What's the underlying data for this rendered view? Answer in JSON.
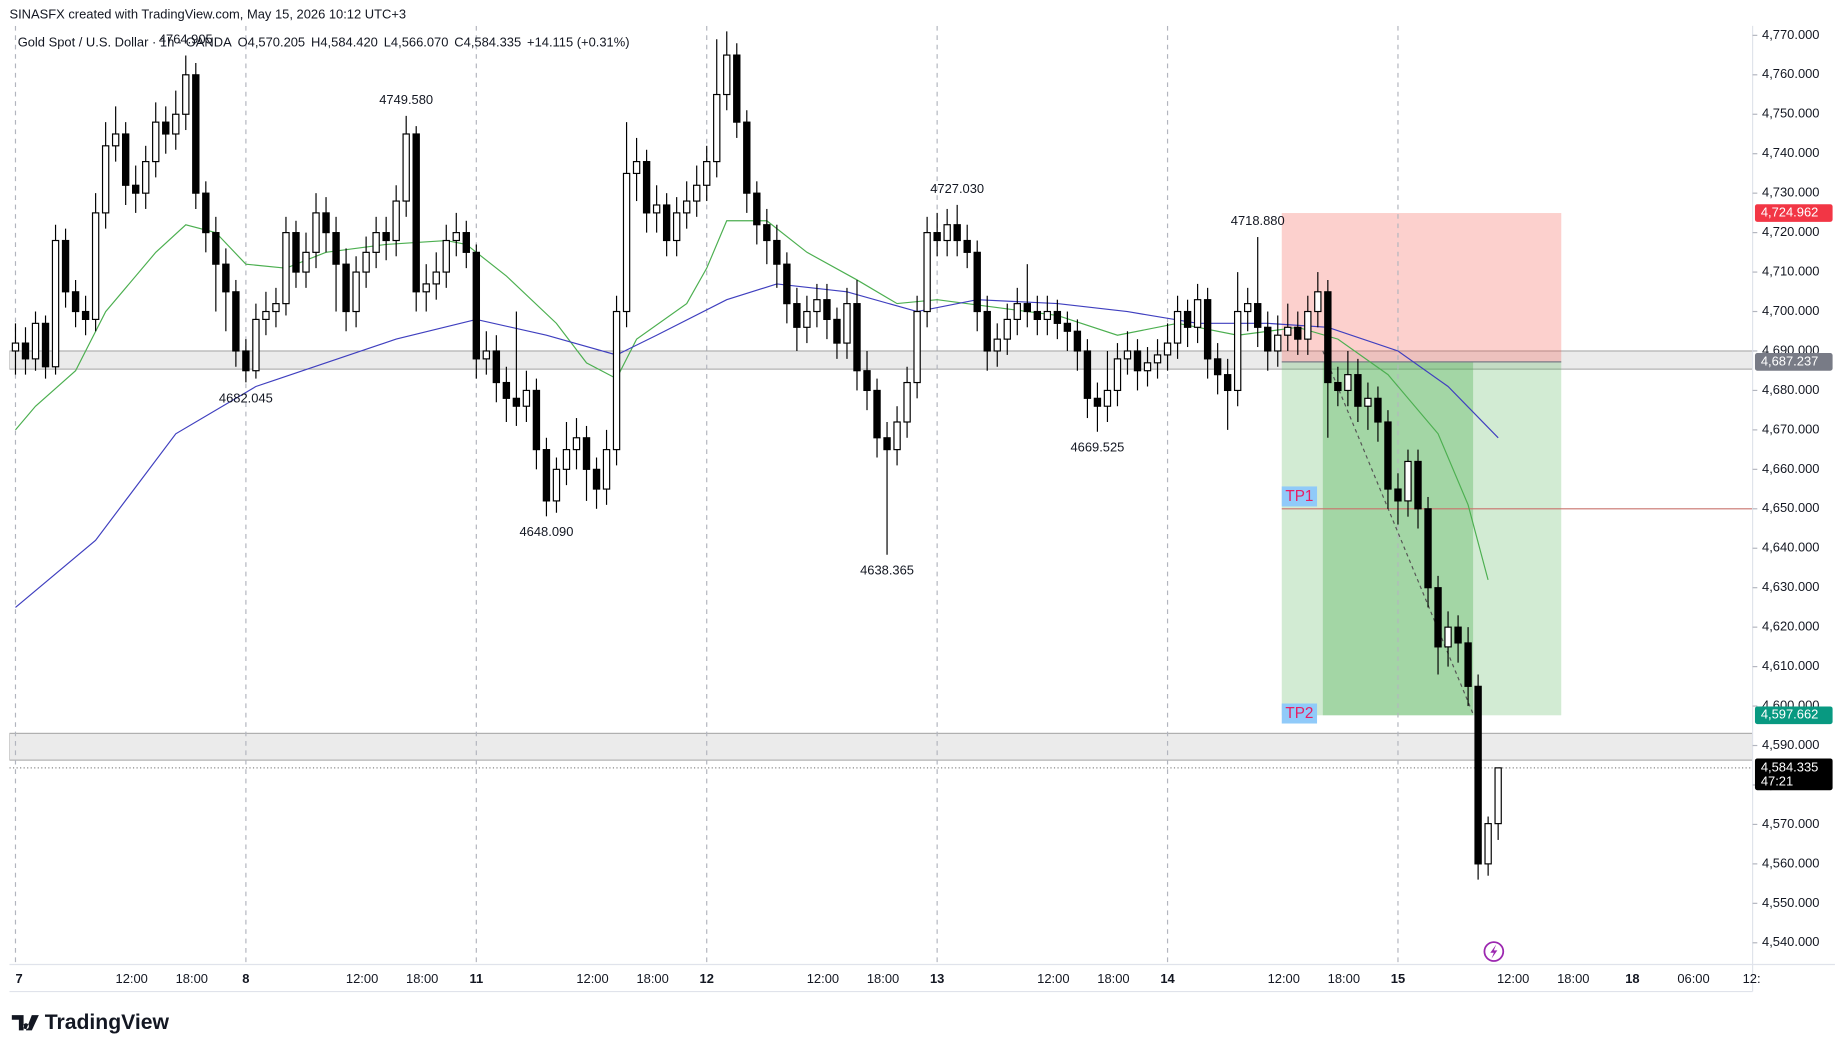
{
  "header": {
    "credit": "SINASFX created with TradingView.com, May 15, 2026 10:12 UTC+3",
    "symbol": "Gold Spot / U.S. Dollar · 1h · OANDA",
    "fields": [
      {
        "key": "O",
        "value": "4,570.205"
      },
      {
        "key": "H",
        "value": "4,584.420"
      },
      {
        "key": "L",
        "value": "4,566.070"
      },
      {
        "key": "C",
        "value": "4,584.335"
      }
    ],
    "change": "+14.115 (+0.31%)"
  },
  "footer": {
    "brand": "TradingView"
  },
  "chart_data": {
    "type": "candlestick",
    "xlim": [
      -0.6,
      173.4
    ],
    "xticks": [
      {
        "value": 0,
        "label": "7"
      },
      {
        "value": 11.6,
        "label": "12:00"
      },
      {
        "value": 17.6,
        "label": "18:00"
      },
      {
        "value": 23,
        "label": "8"
      },
      {
        "value": 34.6,
        "label": "12:00"
      },
      {
        "value": 40.6,
        "label": "18:00"
      },
      {
        "value": 46,
        "label": "11"
      },
      {
        "value": 57.6,
        "label": "12:00"
      },
      {
        "value": 63.6,
        "label": "18:00"
      },
      {
        "value": 69,
        "label": "12"
      },
      {
        "value": 80.6,
        "label": "12:00"
      },
      {
        "value": 86.6,
        "label": "18:00"
      },
      {
        "value": 92,
        "label": "13"
      },
      {
        "value": 103.6,
        "label": "12:00"
      },
      {
        "value": 109.6,
        "label": "18:00"
      },
      {
        "value": 115,
        "label": "14"
      },
      {
        "value": 126.6,
        "label": "12:00"
      },
      {
        "value": 132.6,
        "label": "18:00"
      },
      {
        "value": 138,
        "label": "15"
      },
      {
        "value": 149.5,
        "label": "12:00"
      },
      {
        "value": 155.5,
        "label": "18:00"
      },
      {
        "value": 161.4,
        "label": "18"
      },
      {
        "value": 167.5,
        "label": "06:00"
      },
      {
        "value": 173.3,
        "label": "12:"
      }
    ],
    "ylim": [
      4534.5,
      4772.4
    ],
    "yticks": [
      {
        "value": 4540,
        "label": "4,540.000"
      },
      {
        "value": 4550,
        "label": "4,550.000"
      },
      {
        "value": 4560,
        "label": "4,560.000"
      },
      {
        "value": 4570,
        "label": "4,570.000"
      },
      {
        "value": 4580,
        "label": "4,580.000"
      },
      {
        "value": 4590,
        "label": "4,590.000"
      },
      {
        "value": 4600,
        "label": "4,600.000"
      },
      {
        "value": 4610,
        "label": "4,610.000"
      },
      {
        "value": 4620,
        "label": "4,620.000"
      },
      {
        "value": 4630,
        "label": "4,630.000"
      },
      {
        "value": 4640,
        "label": "4,640.000"
      },
      {
        "value": 4650,
        "label": "4,650.000"
      },
      {
        "value": 4660,
        "label": "4,660.000"
      },
      {
        "value": 4670,
        "label": "4,670.000"
      },
      {
        "value": 4680,
        "label": "4,680.000"
      },
      {
        "value": 4690,
        "label": "4,690.000"
      },
      {
        "value": 4700,
        "label": "4,700.000"
      },
      {
        "value": 4710,
        "label": "4,710.000"
      },
      {
        "value": 4720,
        "label": "4,720.000"
      },
      {
        "value": 4730,
        "label": "4,730.000"
      },
      {
        "value": 4740,
        "label": "4,740.000"
      },
      {
        "value": 4750,
        "label": "4,750.000"
      },
      {
        "value": 4760,
        "label": "4,760.000"
      },
      {
        "value": 4770,
        "label": "4,770.000"
      }
    ],
    "up_color": "#ffffff",
    "down_color": "#000000",
    "wick_color": "#000000",
    "candles": [
      [
        4690,
        4697,
        4684,
        4692
      ],
      [
        4692,
        4696,
        4684,
        4688
      ],
      [
        4688,
        4700,
        4685,
        4697
      ],
      [
        4697,
        4699,
        4683,
        4686
      ],
      [
        4686,
        4722,
        4684,
        4718
      ],
      [
        4718,
        4721,
        4701,
        4705
      ],
      [
        4705,
        4708,
        4696,
        4700
      ],
      [
        4700,
        4704,
        4694,
        4698
      ],
      [
        4698,
        4730,
        4695,
        4725
      ],
      [
        4725,
        4748,
        4721,
        4742
      ],
      [
        4742,
        4752,
        4738,
        4745
      ],
      [
        4745,
        4748,
        4727,
        4732
      ],
      [
        4732,
        4737,
        4725,
        4730
      ],
      [
        4730,
        4742,
        4726,
        4738
      ],
      [
        4738,
        4753,
        4734,
        4748
      ],
      [
        4748,
        4752,
        4740,
        4745
      ],
      [
        4745,
        4756,
        4741,
        4750
      ],
      [
        4750,
        4764.905,
        4746,
        4760
      ],
      [
        4760,
        4763,
        4726,
        4730
      ],
      [
        4730,
        4733,
        4715,
        4720
      ],
      [
        4720,
        4724,
        4700,
        4712
      ],
      [
        4712,
        4716,
        4695,
        4705
      ],
      [
        4705,
        4708,
        4686,
        4690
      ],
      [
        4690,
        4693,
        4682.045,
        4685
      ],
      [
        4685,
        4702,
        4683,
        4698
      ],
      [
        4698,
        4705,
        4694,
        4700
      ],
      [
        4700,
        4706,
        4696,
        4702
      ],
      [
        4702,
        4724,
        4699,
        4720
      ],
      [
        4720,
        4723,
        4706,
        4710
      ],
      [
        4710,
        4720,
        4706,
        4715
      ],
      [
        4715,
        4730,
        4711,
        4725
      ],
      [
        4725,
        4729,
        4715,
        4720
      ],
      [
        4720,
        4724,
        4700,
        4712
      ],
      [
        4712,
        4716,
        4695,
        4700
      ],
      [
        4700,
        4714,
        4696,
        4710
      ],
      [
        4710,
        4719,
        4706,
        4715
      ],
      [
        4715,
        4724,
        4711,
        4720
      ],
      [
        4720,
        4724,
        4713,
        4718
      ],
      [
        4718,
        4732,
        4714,
        4728
      ],
      [
        4728,
        4749.58,
        4724,
        4745
      ],
      [
        4745,
        4747,
        4700,
        4705
      ],
      [
        4705,
        4712,
        4700,
        4707
      ],
      [
        4707,
        4715,
        4703,
        4710
      ],
      [
        4710,
        4722,
        4706,
        4718
      ],
      [
        4718,
        4725,
        4714,
        4720
      ],
      [
        4720,
        4723,
        4711,
        4715
      ],
      [
        4715,
        4717,
        4683,
        4688
      ],
      [
        4688,
        4695,
        4684,
        4690
      ],
      [
        4690,
        4694,
        4677,
        4682
      ],
      [
        4682,
        4686,
        4672,
        4678
      ],
      [
        4678,
        4700,
        4671,
        4676
      ],
      [
        4676,
        4685,
        4672,
        4680
      ],
      [
        4680,
        4683,
        4660,
        4665
      ],
      [
        4665,
        4668,
        4648.09,
        4652
      ],
      [
        4652,
        4663,
        4649,
        4660
      ],
      [
        4660,
        4672,
        4656,
        4665
      ],
      [
        4665,
        4673,
        4660,
        4668
      ],
      [
        4668,
        4671,
        4652,
        4660
      ],
      [
        4660,
        4663,
        4650,
        4655
      ],
      [
        4655,
        4670,
        4651,
        4665
      ],
      [
        4665,
        4704,
        4661,
        4700
      ],
      [
        4700,
        4748,
        4696,
        4735
      ],
      [
        4735,
        4744,
        4728,
        4738
      ],
      [
        4738,
        4741,
        4720,
        4725
      ],
      [
        4725,
        4732,
        4720,
        4727
      ],
      [
        4727,
        4730,
        4714,
        4718
      ],
      [
        4718,
        4729,
        4714,
        4725
      ],
      [
        4725,
        4733,
        4721,
        4728
      ],
      [
        4728,
        4737,
        4724,
        4732
      ],
      [
        4732,
        4742,
        4728,
        4738
      ],
      [
        4738,
        4769,
        4734,
        4755
      ],
      [
        4755,
        4771,
        4751,
        4765
      ],
      [
        4765,
        4768,
        4744,
        4748
      ],
      [
        4748,
        4751,
        4725,
        4730
      ],
      [
        4730,
        4733,
        4717,
        4722
      ],
      [
        4722,
        4726,
        4712,
        4718
      ],
      [
        4718,
        4722,
        4706,
        4712
      ],
      [
        4712,
        4715,
        4697,
        4702
      ],
      [
        4702,
        4706,
        4690,
        4696
      ],
      [
        4696,
        4704,
        4692,
        4700
      ],
      [
        4700,
        4707,
        4696,
        4703
      ],
      [
        4703,
        4707,
        4693,
        4698
      ],
      [
        4698,
        4701,
        4688,
        4692
      ],
      [
        4692,
        4706,
        4688,
        4702
      ],
      [
        4702,
        4708,
        4680,
        4685
      ],
      [
        4685,
        4690,
        4675,
        4680
      ],
      [
        4680,
        4683,
        4663,
        4668
      ],
      [
        4668,
        4672,
        4638.365,
        4665
      ],
      [
        4665,
        4676,
        4661,
        4672
      ],
      [
        4672,
        4686,
        4668,
        4682
      ],
      [
        4682,
        4704,
        4678,
        4700
      ],
      [
        4700,
        4724,
        4696,
        4720
      ],
      [
        4720,
        4725,
        4714,
        4718
      ],
      [
        4718,
        4726,
        4714,
        4722
      ],
      [
        4722,
        4727.03,
        4714,
        4718
      ],
      [
        4718,
        4722,
        4711,
        4715
      ],
      [
        4715,
        4718,
        4695,
        4700
      ],
      [
        4700,
        4704,
        4685,
        4690
      ],
      [
        4690,
        4697,
        4686,
        4693
      ],
      [
        4693,
        4702,
        4689,
        4698
      ],
      [
        4698,
        4706,
        4694,
        4702
      ],
      [
        4702,
        4712,
        4696,
        4700
      ],
      [
        4700,
        4704,
        4694,
        4698
      ],
      [
        4698,
        4704,
        4694,
        4700
      ],
      [
        4700,
        4703,
        4693,
        4697
      ],
      [
        4697,
        4700,
        4690,
        4695
      ],
      [
        4695,
        4698,
        4685,
        4690
      ],
      [
        4690,
        4693,
        4673,
        4678
      ],
      [
        4678,
        4682,
        4669.525,
        4676
      ],
      [
        4676,
        4690,
        4672,
        4680
      ],
      [
        4680,
        4692,
        4676,
        4688
      ],
      [
        4688,
        4695,
        4684,
        4690
      ],
      [
        4690,
        4693,
        4680,
        4685
      ],
      [
        4685,
        4691,
        4681,
        4687
      ],
      [
        4687,
        4693,
        4683,
        4689
      ],
      [
        4689,
        4697,
        4685,
        4692
      ],
      [
        4692,
        4704,
        4688,
        4700
      ],
      [
        4700,
        4703,
        4691,
        4696
      ],
      [
        4696,
        4707,
        4692,
        4703
      ],
      [
        4703,
        4706,
        4683,
        4688
      ],
      [
        4688,
        4692,
        4679,
        4684
      ],
      [
        4684,
        4688,
        4670,
        4680
      ],
      [
        4680,
        4710,
        4676,
        4700
      ],
      [
        4700,
        4706,
        4695,
        4702
      ],
      [
        4702,
        4718.88,
        4691,
        4696
      ],
      [
        4696,
        4700,
        4685,
        4690
      ],
      [
        4690,
        4699,
        4686,
        4694
      ],
      [
        4694,
        4702,
        4690,
        4696
      ],
      [
        4696,
        4700,
        4689,
        4693
      ],
      [
        4693,
        4704,
        4689,
        4700
      ],
      [
        4700,
        4710,
        4696,
        4705
      ],
      [
        4705,
        4708,
        4668,
        4682
      ],
      [
        4682,
        4686,
        4676,
        4680
      ],
      [
        4680,
        4690,
        4676,
        4684
      ],
      [
        4684,
        4688,
        4672,
        4676
      ],
      [
        4676,
        4682,
        4670,
        4678
      ],
      [
        4678,
        4681,
        4667,
        4672
      ],
      [
        4672,
        4675,
        4650,
        4655
      ],
      [
        4655,
        4659,
        4646,
        4652
      ],
      [
        4652,
        4665,
        4648,
        4662
      ],
      [
        4662,
        4665,
        4645,
        4650
      ],
      [
        4650,
        4653,
        4625,
        4630
      ],
      [
        4630,
        4633,
        4608,
        4615
      ],
      [
        4615,
        4624,
        4610,
        4620
      ],
      [
        4620,
        4623,
        4611,
        4616
      ],
      [
        4616,
        4620,
        4600,
        4605
      ],
      [
        4605,
        4608,
        4556,
        4560
      ],
      [
        4560,
        4572,
        4557,
        4570.205
      ],
      [
        4570.205,
        4584.42,
        4566.07,
        4584.335
      ]
    ],
    "series": [
      {
        "color": "#4caf50",
        "x": [
          0,
          2,
          6,
          9,
          14,
          17,
          20,
          23,
          27,
          31,
          37,
          43,
          45,
          49,
          54,
          57,
          60,
          62,
          67,
          69,
          71,
          75,
          79,
          84,
          88,
          92,
          98,
          104,
          110,
          116,
          122,
          128,
          132,
          137,
          142,
          145,
          147
        ],
        "values": [
          4670,
          4676,
          4685,
          4700,
          4715,
          4722,
          4720,
          4712,
          4711,
          4715,
          4717,
          4718,
          4717,
          4709,
          4697,
          4687,
          4683,
          4693,
          4702,
          4711,
          4723,
          4723,
          4715,
          4708,
          4702,
          4703,
          4701,
          4699,
          4694,
          4697,
          4694,
          4696,
          4693,
          4684,
          4669,
          4651,
          4632
        ]
      },
      {
        "color": "#3f3fbf",
        "x": [
          0,
          8,
          16,
          24,
          31,
          38,
          46,
          53,
          60,
          64,
          71,
          76,
          83,
          90,
          96,
          104,
          111,
          118,
          125,
          131,
          138,
          143,
          148
        ],
        "values": [
          4625,
          4642,
          4669,
          4681,
          4687,
          4693,
          4698,
          4694,
          4689,
          4694,
          4703,
          4707,
          4705,
          4700,
          4703,
          4702,
          4700,
          4697,
          4697,
          4696,
          4690,
          4681,
          4668
        ]
      }
    ],
    "annotations": [
      {
        "x": 17,
        "value": 4764.905,
        "label": "4764.905"
      },
      {
        "x": 39,
        "value": 4749.58,
        "label": "4749.580"
      },
      {
        "x": 23,
        "value": 4682.045,
        "label": "4682.045"
      },
      {
        "x": 53,
        "value": 4648.09,
        "label": "4648.090"
      },
      {
        "x": 94,
        "value": 4727.03,
        "label": "4727.030"
      },
      {
        "x": 87,
        "value": 4638.365,
        "label": "4638.365"
      },
      {
        "x": 108,
        "value": 4669.525,
        "label": "4669.525"
      },
      {
        "x": 124,
        "value": 4718.88,
        "label": "4718.880"
      }
    ],
    "zones": [
      [
        4685.4,
        4690
      ],
      [
        4586.3,
        4593.1
      ]
    ],
    "position": {
      "x": [
        126.4,
        154.3
      ],
      "filled_x": [
        130.5,
        145.5
      ],
      "stop": {
        "value": 4724.962,
        "label": "4,724.962"
      },
      "entry": {
        "value": 4687.237,
        "label": "4,687.237"
      },
      "target": {
        "value": 4597.662,
        "label": "4,597.662"
      },
      "tp1": {
        "value": 4650,
        "label": "TP1"
      },
      "tp2": {
        "label": "TP2"
      },
      "trend": {
        "x": [
          130.5,
          145.5
        ],
        "values": [
          4690,
          4598
        ]
      }
    },
    "last_price": {
      "value": 4584.335,
      "label": "4,584.335",
      "countdown": "47:21"
    }
  }
}
